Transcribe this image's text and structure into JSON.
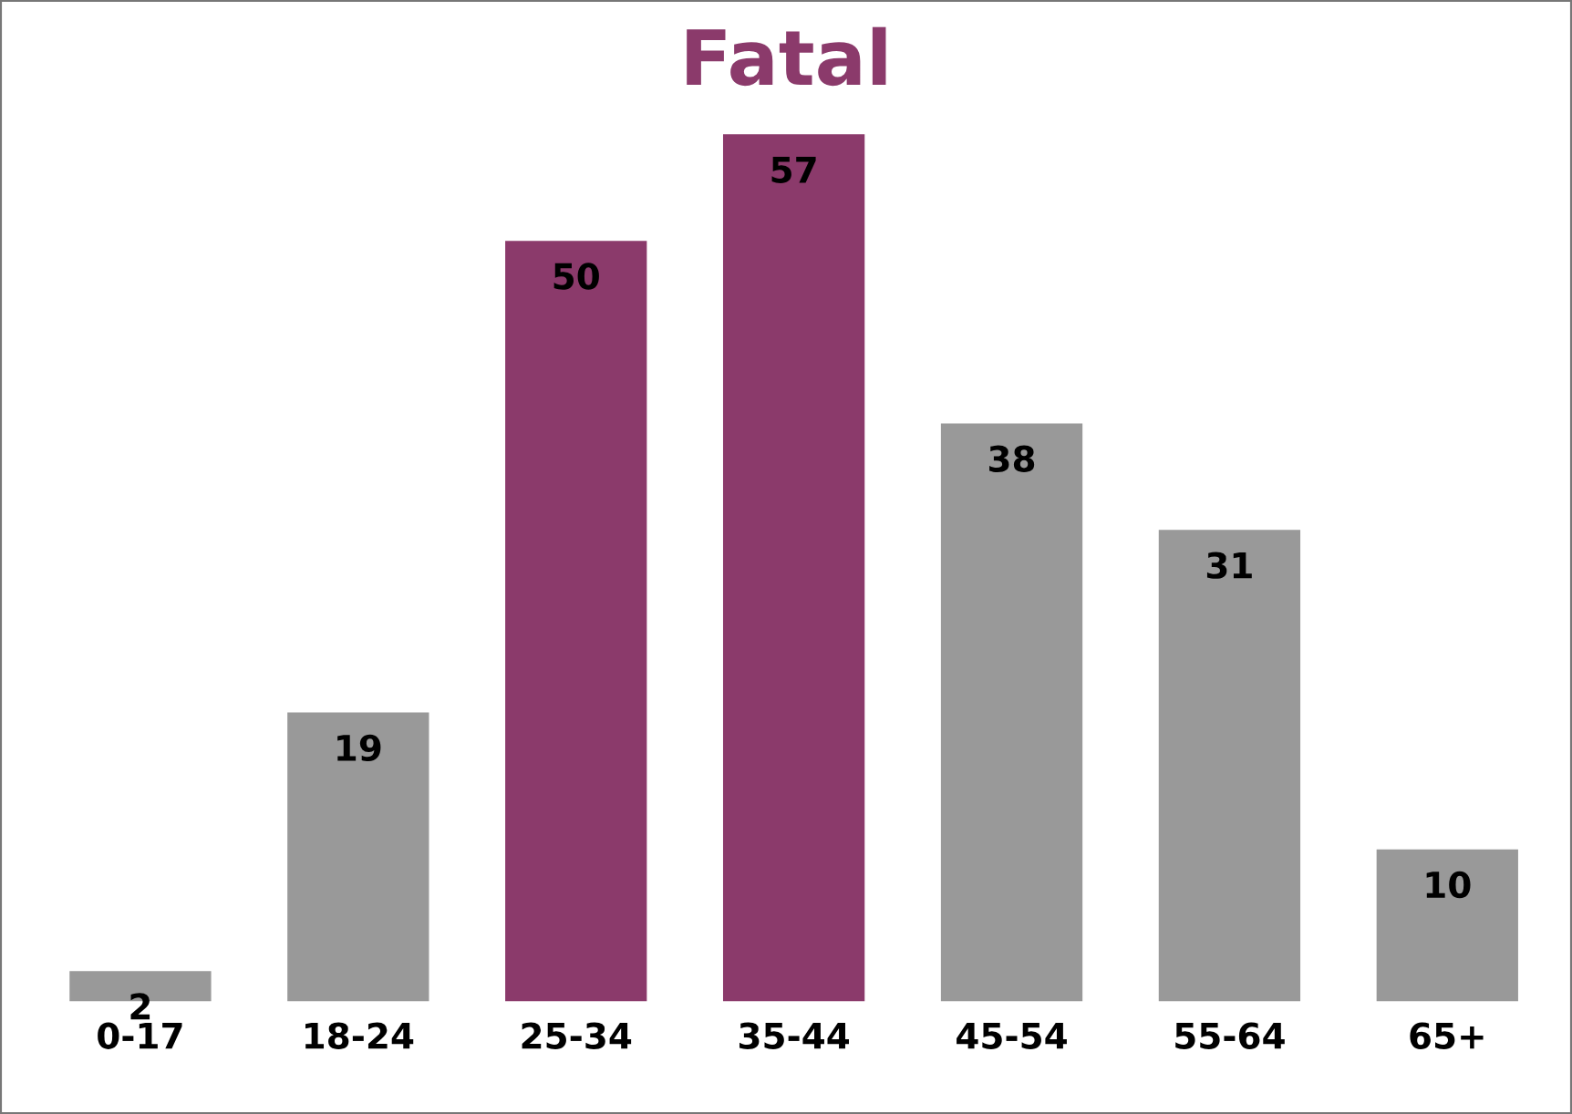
{
  "chart_data": {
    "type": "bar",
    "title": "Fatal",
    "categories": [
      "0-17",
      "18-24",
      "25-34",
      "35-44",
      "45-54",
      "55-64",
      "65+"
    ],
    "values": [
      2,
      19,
      50,
      57,
      38,
      31,
      10
    ],
    "colors": [
      "#999999",
      "#999999",
      "#8b3a6b",
      "#8b3a6b",
      "#999999",
      "#999999",
      "#999999"
    ],
    "data_labels": true,
    "grid": false,
    "legend": false
  }
}
